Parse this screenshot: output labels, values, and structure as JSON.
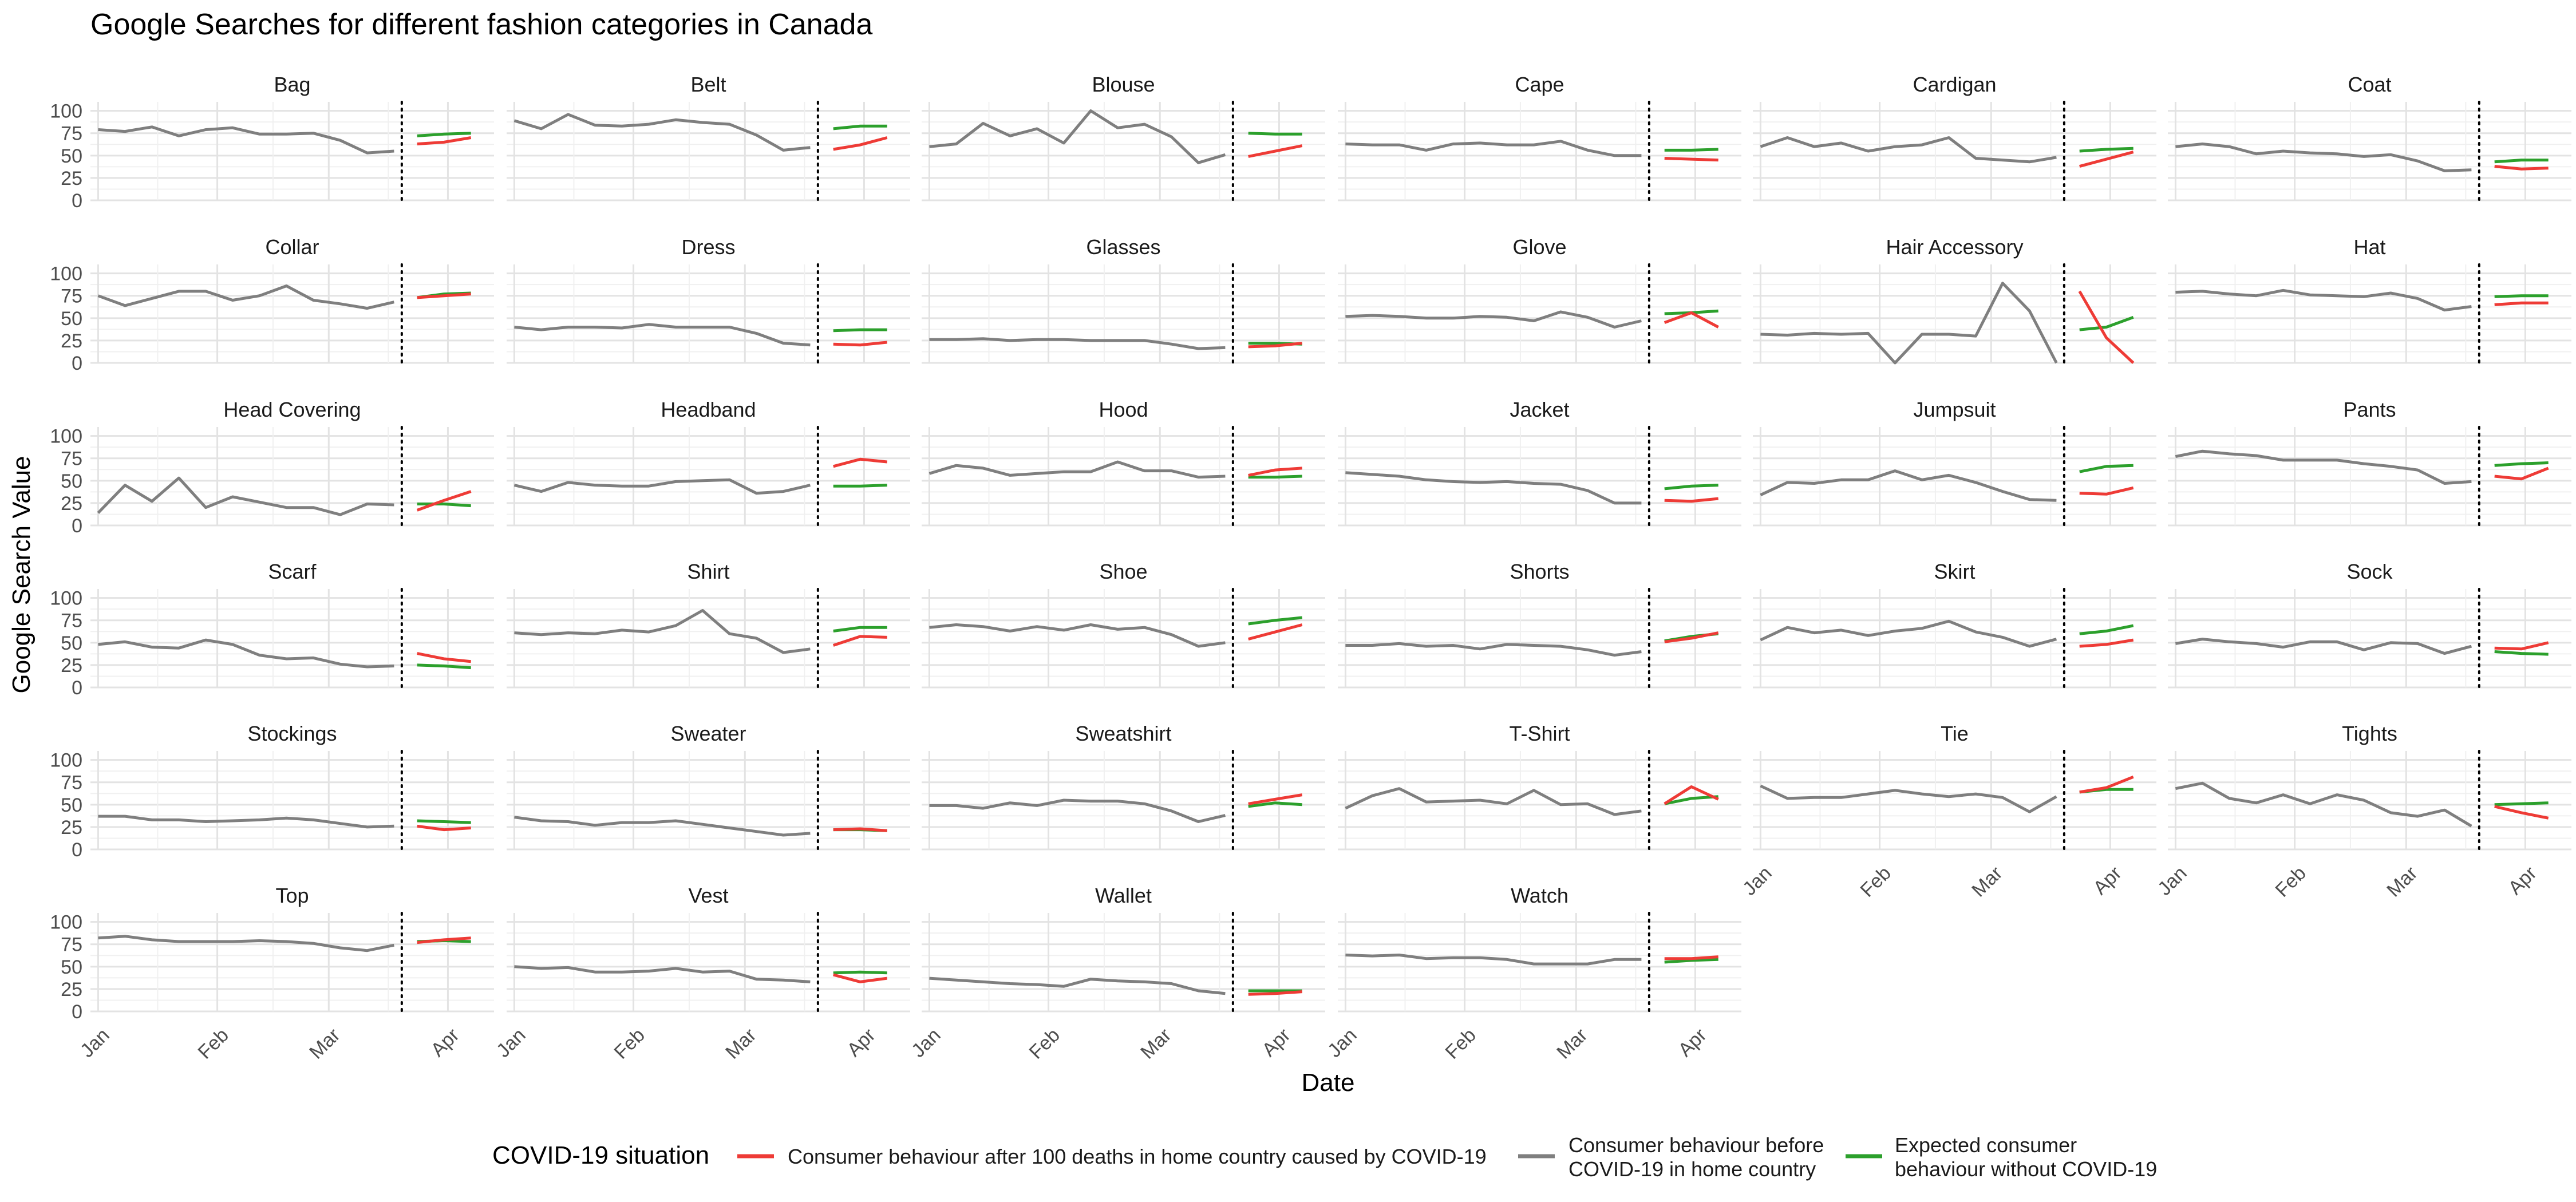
{
  "chart_data": {
    "type": "line",
    "title": "Google Searches for different fashion categories in Canada",
    "xlabel": "Date",
    "ylabel": "Google Search Value",
    "ylim": [
      0,
      110
    ],
    "y_ticks": [
      0,
      25,
      50,
      75,
      100
    ],
    "x_ticks": [
      {
        "label": "Jan",
        "x": 1
      },
      {
        "label": "Feb",
        "x": 32
      },
      {
        "label": "Mar",
        "x": 61
      },
      {
        "label": "Apr",
        "x": 92
      }
    ],
    "xlim": [
      -1,
      104
    ],
    "xaxis_note": "x = day of year 2020",
    "covid_marker_x": 80,
    "grid": true,
    "legend": {
      "title": "COVID-19 situation",
      "position": "bottom",
      "entries": [
        {
          "key": "after",
          "label": "Consumer behaviour after 100 deaths in home country caused by COVID-19",
          "color": "#EE3B36"
        },
        {
          "key": "before",
          "label": "Consumer behaviour before\nCOVID-19 in home country",
          "color": "#7F7F7F"
        },
        {
          "key": "expected",
          "label": "Expected consumer\nbehaviour without COVID-19",
          "color": "#2CA02C"
        }
      ]
    },
    "colors": {
      "before": "#7F7F7F",
      "after": "#EE3B36",
      "expected": "#2CA02C"
    },
    "before_x": [
      1,
      8,
      15,
      22,
      29,
      36,
      43,
      50,
      57,
      64,
      71,
      78
    ],
    "after_x": [
      84,
      91,
      98
    ],
    "panels": [
      {
        "name": "Bag",
        "before": [
          79,
          77,
          82,
          72,
          79,
          81,
          74,
          74,
          75,
          67,
          53,
          55
        ],
        "after": [
          63,
          65,
          70
        ],
        "expected": [
          72,
          74,
          75
        ]
      },
      {
        "name": "Belt",
        "before": [
          89,
          80,
          96,
          84,
          83,
          85,
          90,
          87,
          85,
          73,
          56,
          59
        ],
        "after": [
          57,
          62,
          70
        ],
        "expected": [
          80,
          83,
          83
        ]
      },
      {
        "name": "Blouse",
        "before": [
          60,
          63,
          86,
          72,
          80,
          64,
          100,
          81,
          85,
          71,
          42,
          51
        ],
        "after": [
          49,
          55,
          61
        ],
        "expected": [
          75,
          74,
          74
        ]
      },
      {
        "name": "Cape",
        "before": [
          63,
          62,
          62,
          56,
          63,
          64,
          62,
          62,
          66,
          56,
          50,
          50
        ],
        "after": [
          47,
          46,
          45
        ],
        "expected": [
          56,
          56,
          57
        ]
      },
      {
        "name": "Cardigan",
        "before": [
          60,
          70,
          60,
          64,
          55,
          60,
          62,
          70,
          47,
          45,
          43,
          48
        ],
        "after": [
          38,
          46,
          54
        ],
        "expected": [
          55,
          57,
          58
        ]
      },
      {
        "name": "Coat",
        "before": [
          60,
          63,
          60,
          52,
          55,
          53,
          52,
          49,
          51,
          44,
          33,
          34
        ],
        "after": [
          38,
          35,
          36
        ],
        "expected": [
          43,
          45,
          45
        ]
      },
      {
        "name": "Collar",
        "before": [
          75,
          64,
          72,
          80,
          80,
          70,
          75,
          86,
          70,
          66,
          61,
          68
        ],
        "after": [
          73,
          75,
          77
        ],
        "expected": [
          73,
          77,
          78
        ]
      },
      {
        "name": "Dress",
        "before": [
          40,
          37,
          40,
          40,
          39,
          43,
          40,
          40,
          40,
          33,
          22,
          20
        ],
        "after": [
          21,
          20,
          23
        ],
        "expected": [
          36,
          37,
          37
        ]
      },
      {
        "name": "Glasses",
        "before": [
          26,
          26,
          27,
          25,
          26,
          26,
          25,
          25,
          25,
          21,
          16,
          17
        ],
        "after": [
          18,
          19,
          22
        ],
        "expected": [
          22,
          22,
          21
        ]
      },
      {
        "name": "Glove",
        "before": [
          52,
          53,
          52,
          50,
          50,
          52,
          51,
          47,
          57,
          51,
          40,
          47
        ],
        "after": [
          45,
          56,
          40
        ],
        "expected": [
          55,
          56,
          58
        ]
      },
      {
        "name": "Hair Accessory",
        "before": [
          32,
          31,
          33,
          32,
          33,
          0,
          32,
          32,
          30,
          89,
          58,
          0
        ],
        "after": [
          80,
          28,
          0
        ],
        "expected": [
          37,
          40,
          51
        ]
      },
      {
        "name": "Hat",
        "before": [
          79,
          80,
          77,
          75,
          81,
          76,
          75,
          74,
          78,
          72,
          59,
          63
        ],
        "after": [
          65,
          67,
          67
        ],
        "expected": [
          74,
          75,
          75
        ]
      },
      {
        "name": "Head Covering",
        "before": [
          14,
          45,
          27,
          53,
          20,
          32,
          26,
          20,
          20,
          12,
          24,
          23
        ],
        "after": [
          17,
          28,
          38
        ],
        "expected": [
          24,
          24,
          22
        ]
      },
      {
        "name": "Headband",
        "before": [
          45,
          38,
          48,
          45,
          44,
          44,
          49,
          50,
          51,
          36,
          38,
          45
        ],
        "after": [
          66,
          74,
          71
        ],
        "expected": [
          44,
          44,
          45
        ]
      },
      {
        "name": "Hood",
        "before": [
          58,
          67,
          64,
          56,
          58,
          60,
          60,
          71,
          61,
          61,
          54,
          55
        ],
        "after": [
          56,
          62,
          64
        ],
        "expected": [
          54,
          54,
          55
        ]
      },
      {
        "name": "Jacket",
        "before": [
          59,
          57,
          55,
          51,
          49,
          48,
          49,
          47,
          46,
          39,
          25,
          25
        ],
        "after": [
          28,
          27,
          30
        ],
        "expected": [
          41,
          44,
          45
        ]
      },
      {
        "name": "Jumpsuit",
        "before": [
          34,
          48,
          47,
          51,
          51,
          61,
          51,
          56,
          48,
          38,
          29,
          28
        ],
        "after": [
          36,
          35,
          42
        ],
        "expected": [
          60,
          66,
          67
        ]
      },
      {
        "name": "Pants",
        "before": [
          77,
          83,
          80,
          78,
          73,
          73,
          73,
          69,
          66,
          62,
          47,
          49
        ],
        "after": [
          55,
          52,
          64
        ],
        "expected": [
          67,
          69,
          70
        ]
      },
      {
        "name": "Scarf",
        "before": [
          48,
          51,
          45,
          44,
          53,
          48,
          36,
          32,
          33,
          26,
          23,
          24
        ],
        "after": [
          38,
          32,
          29
        ],
        "expected": [
          25,
          24,
          22
        ]
      },
      {
        "name": "Shirt",
        "before": [
          61,
          59,
          61,
          60,
          64,
          62,
          69,
          86,
          60,
          55,
          39,
          43
        ],
        "after": [
          47,
          57,
          56
        ],
        "expected": [
          63,
          67,
          67
        ]
      },
      {
        "name": "Shoe",
        "before": [
          67,
          70,
          68,
          63,
          68,
          64,
          70,
          65,
          67,
          59,
          46,
          50
        ],
        "after": [
          54,
          62,
          70
        ],
        "expected": [
          71,
          75,
          78
        ]
      },
      {
        "name": "Shorts",
        "before": [
          47,
          47,
          49,
          46,
          47,
          43,
          48,
          47,
          46,
          42,
          36,
          40
        ],
        "after": [
          51,
          55,
          61
        ],
        "expected": [
          52,
          57,
          60
        ]
      },
      {
        "name": "Skirt",
        "before": [
          53,
          67,
          61,
          64,
          58,
          63,
          66,
          74,
          62,
          56,
          46,
          54
        ],
        "after": [
          46,
          48,
          53
        ],
        "expected": [
          60,
          63,
          69
        ]
      },
      {
        "name": "Sock",
        "before": [
          49,
          54,
          51,
          49,
          45,
          51,
          51,
          42,
          50,
          49,
          38,
          46
        ],
        "after": [
          44,
          43,
          50
        ],
        "expected": [
          40,
          38,
          37
        ]
      },
      {
        "name": "Stockings",
        "before": [
          37,
          37,
          33,
          33,
          31,
          32,
          33,
          35,
          33,
          29,
          25,
          26
        ],
        "after": [
          26,
          22,
          24
        ],
        "expected": [
          32,
          31,
          30
        ]
      },
      {
        "name": "Sweater",
        "before": [
          36,
          32,
          31,
          27,
          30,
          30,
          32,
          28,
          24,
          20,
          16,
          18
        ],
        "after": [
          22,
          23,
          21
        ],
        "expected": [
          22,
          22,
          21
        ]
      },
      {
        "name": "Sweatshirt",
        "before": [
          49,
          49,
          46,
          52,
          49,
          55,
          54,
          54,
          51,
          43,
          31,
          38
        ],
        "after": [
          51,
          56,
          61
        ],
        "expected": [
          48,
          52,
          50
        ]
      },
      {
        "name": "T-Shirt",
        "before": [
          46,
          60,
          68,
          53,
          54,
          55,
          51,
          66,
          50,
          51,
          39,
          43
        ],
        "after": [
          51,
          70,
          56
        ],
        "expected": [
          51,
          57,
          59
        ]
      },
      {
        "name": "Tie",
        "before": [
          71,
          57,
          58,
          58,
          62,
          66,
          62,
          59,
          62,
          58,
          42,
          59
        ],
        "after": [
          64,
          69,
          81
        ],
        "expected": [
          64,
          67,
          67
        ]
      },
      {
        "name": "Tights",
        "before": [
          68,
          74,
          57,
          52,
          61,
          51,
          61,
          55,
          41,
          37,
          44,
          26
        ],
        "after": [
          48,
          41,
          35
        ],
        "expected": [
          50,
          51,
          52
        ]
      },
      {
        "name": "Top",
        "before": [
          82,
          84,
          80,
          78,
          78,
          78,
          79,
          78,
          76,
          71,
          68,
          74
        ],
        "after": [
          77,
          80,
          82
        ],
        "expected": [
          78,
          79,
          78
        ]
      },
      {
        "name": "Vest",
        "before": [
          50,
          48,
          49,
          44,
          44,
          45,
          48,
          44,
          45,
          36,
          35,
          33
        ],
        "after": [
          41,
          33,
          37
        ],
        "expected": [
          43,
          44,
          43
        ]
      },
      {
        "name": "Wallet",
        "before": [
          37,
          35,
          33,
          31,
          30,
          28,
          36,
          34,
          33,
          31,
          23,
          20
        ],
        "after": [
          19,
          20,
          22
        ],
        "expected": [
          23,
          23,
          23
        ]
      },
      {
        "name": "Watch",
        "before": [
          63,
          62,
          63,
          59,
          60,
          60,
          58,
          53,
          53,
          53,
          58,
          58
        ],
        "after": [
          59,
          59,
          61
        ],
        "expected": [
          55,
          57,
          58
        ]
      }
    ]
  }
}
